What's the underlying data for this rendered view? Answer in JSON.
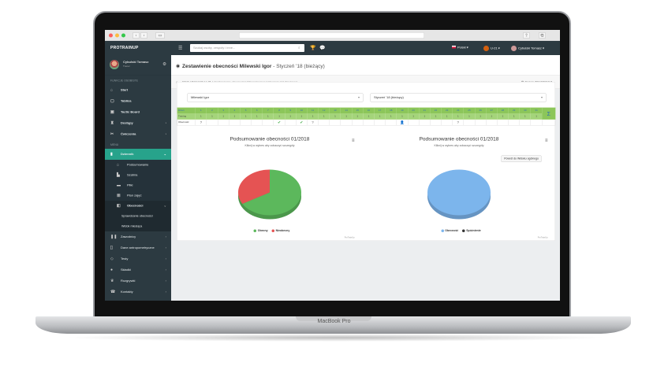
{
  "device": {
    "brand": "MacBook Pro"
  },
  "app": {
    "logo": "PROTRAINUP",
    "search_placeholder": "Szukaj osoby, zespoły i inne...",
    "language": "Polski",
    "team": "U-21",
    "user": "Cybulski Tomasz"
  },
  "sidebar": {
    "user_name": "Cybulski Tomasz",
    "user_role": "Trener",
    "section1": "FUNKCJE OSOBISTE",
    "items1": [
      {
        "label": "Start",
        "icon": "home"
      },
      {
        "label": "Tablica",
        "icon": "chat"
      },
      {
        "label": "Tactic Board",
        "icon": "board"
      },
      {
        "label": "Dostępy",
        "icon": "trophy"
      },
      {
        "label": "Ćwiczenia",
        "icon": "exercise"
      }
    ],
    "section2": "MENU",
    "active": "Dziennik",
    "sub": [
      "Podsumowanie",
      "Szatnia",
      "Pliki",
      "Plan zajęć",
      "Obecności"
    ],
    "sub2": [
      "Sprawdzanie obecności",
      "Widok miesiąca"
    ],
    "items2": [
      "Zawodnicy",
      "Dane antropometryczne",
      "Testy",
      "Składki",
      "Rozgrywki",
      "Kontakty"
    ]
  },
  "header": {
    "title_bold": "Zestawienie obecności Milewski Igor",
    "title_rest": " - Styczeń '18 (bieżący)"
  },
  "breadcrumb": [
    "Start",
    "Dziennik U-21",
    "Zestawienie obecności Milewski Igor",
    "Styczeń '18 (bieżący)"
  ],
  "season": "Sezon 2017/2018",
  "filters": {
    "player": "Milewski Igor",
    "month": "Styczeń '18 (bieżący)"
  },
  "table": {
    "row_labels": [
      "Dzień",
      "Trening",
      "Obecność"
    ],
    "sum_label": "Σ",
    "days": [
      "1",
      "2",
      "3",
      "4",
      "5",
      "6",
      "7",
      "8",
      "9",
      "10",
      "11",
      "12",
      "13",
      "14",
      "15",
      "16",
      "17",
      "18",
      "19",
      "20",
      "21",
      "22",
      "23",
      "24",
      "25",
      "26",
      "27",
      "28",
      "29",
      "30",
      "31"
    ],
    "trainings": [
      "1",
      "1",
      "1",
      "1",
      "1",
      "1",
      "1",
      "1",
      "1",
      "1",
      "1",
      "1",
      "1",
      "1",
      "1",
      "1",
      "1",
      "1",
      "1",
      "1",
      "1",
      "1",
      "1",
      "1",
      "1",
      "1",
      "1",
      "1",
      "1",
      "1",
      "1"
    ],
    "attendance": [
      "?",
      "",
      "",
      "",
      "",
      "",
      "",
      "✔",
      "",
      "✔",
      "?",
      "",
      "",
      "",
      "",
      "",
      "",
      "",
      "👤",
      "",
      "",
      "",
      "",
      "?",
      "",
      "",
      "",
      "",
      "",
      "",
      ""
    ]
  },
  "chart_data": [
    {
      "type": "pie",
      "title": "Podsumowanie obecności 01/2018",
      "subtitle": "Kliknij w wykres aby zobaczyć szczegóły",
      "categories": [
        "Obecny",
        "Nieobecny"
      ],
      "values": [
        66.7,
        33.3
      ],
      "colors": [
        "#5cb85c",
        "#e55353"
      ],
      "legend": "bottom",
      "credit": "ProTrainUp"
    },
    {
      "type": "pie",
      "title": "Podsumowanie obecności 01/2018",
      "subtitle": "Kliknij w wykres aby zobaczyć szczegóły",
      "categories": [
        "Obecność",
        "Spóźnienie"
      ],
      "values": [
        100,
        0
      ],
      "colors": [
        "#7cb5ec",
        "#333333"
      ],
      "legend": "bottom",
      "button": "Powrót do Widoku ogólnego",
      "credit": "ProTrainUp"
    }
  ]
}
